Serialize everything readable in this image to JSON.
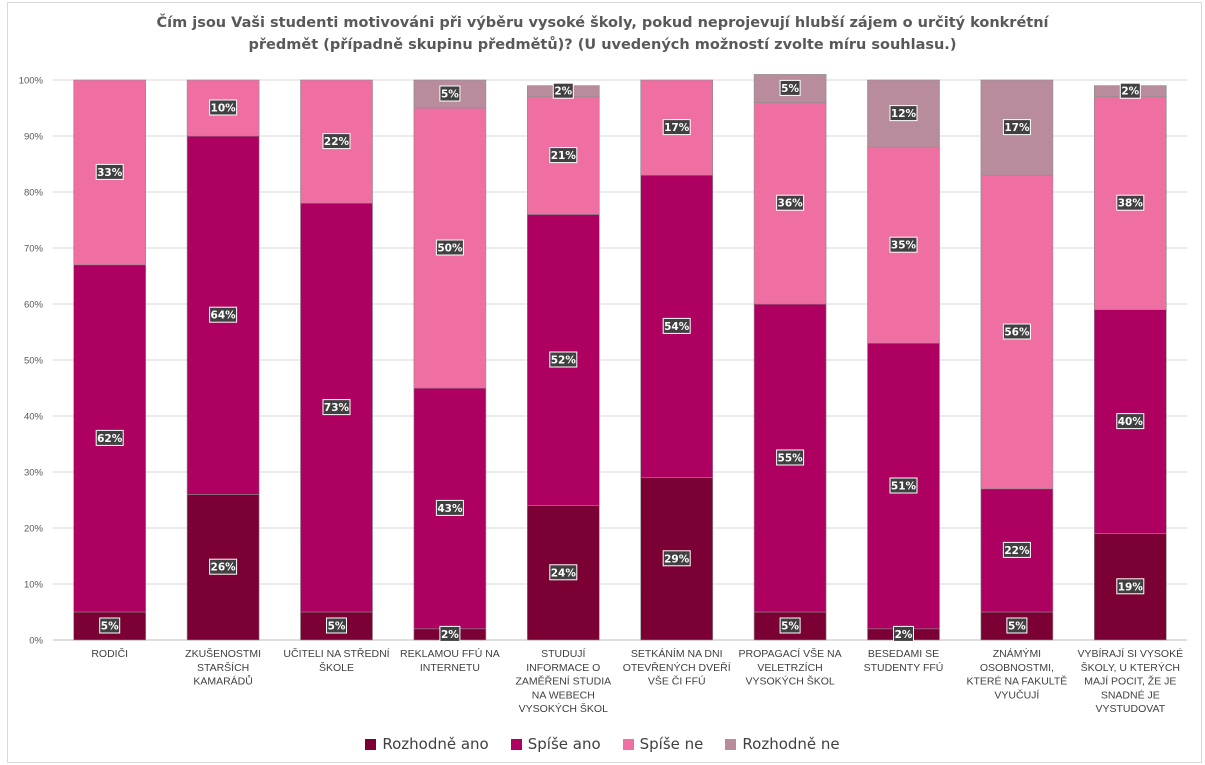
{
  "chart_data": {
    "type": "bar",
    "stacked": "percent",
    "title_lines": [
      "Čím jsou Vaši studenti motivováni při výběru vysoké školy, pokud neprojevují hlubší zájem o určitý konkrétní",
      "předmět (případně skupinu předmětů)? (U uvedených možností zvolte míru souhlasu.)"
    ],
    "categories": [
      [
        "RODIČI"
      ],
      [
        "ZKUŠENOSTMI",
        "STARŠÍCH",
        "KAMARÁDŮ"
      ],
      [
        "UČITELI NA STŘEDNÍ",
        "ŠKOLE"
      ],
      [
        "REKLAMOU FFÚ NA",
        "INTERNETU"
      ],
      [
        "STUDUJÍ",
        "INFORMACE O",
        "ZAMĚŘENÍ STUDIA",
        "NA WEBECH",
        "VYSOKÝCH ŠKOL"
      ],
      [
        "SETKÁNÍM NA DNI",
        "OTEVŘENÝCH DVEŘÍ",
        "VŠE ČI FFÚ"
      ],
      [
        "PROPAGACÍ VŠE NA",
        "VELETRZÍCH",
        "VYSOKÝCH ŠKOL"
      ],
      [
        "BESEDAMI SE",
        "STUDENTY FFÚ"
      ],
      [
        "ZNÁMÝMI",
        "OSOBNOSTMI,",
        "KTERÉ NA FAKULTĚ",
        "VYUČUJÍ"
      ],
      [
        "VYBÍRAJÍ SI VYSOKÉ",
        "ŠKOLY, U KTERÝCH",
        "MAJÍ POCIT, ŽE JE",
        "SNADNÉ JE",
        "VYSTUDOVAT"
      ]
    ],
    "series": [
      {
        "name": "Rozhodně ano",
        "color": "#7b0034",
        "values": [
          5,
          26,
          5,
          2,
          24,
          29,
          5,
          2,
          5,
          19
        ]
      },
      {
        "name": "Spíše ano",
        "color": "#ad0060",
        "values": [
          62,
          64,
          73,
          43,
          52,
          54,
          55,
          51,
          22,
          40
        ]
      },
      {
        "name": "Spíše ne",
        "color": "#ef6fa3",
        "values": [
          33,
          10,
          22,
          50,
          21,
          17,
          36,
          35,
          56,
          38
        ]
      },
      {
        "name": "Rozhodně ne",
        "color": "#b98c9d",
        "values": [
          0,
          0,
          0,
          5,
          2,
          0,
          5,
          12,
          17,
          2
        ]
      }
    ],
    "data_label_suffix": "%",
    "ylim": [
      0,
      100
    ],
    "yticks": [
      "0%",
      "10%",
      "20%",
      "30%",
      "40%",
      "50%",
      "60%",
      "70%",
      "80%",
      "90%",
      "100%"
    ],
    "grid": true,
    "legend_position": "bottom"
  }
}
